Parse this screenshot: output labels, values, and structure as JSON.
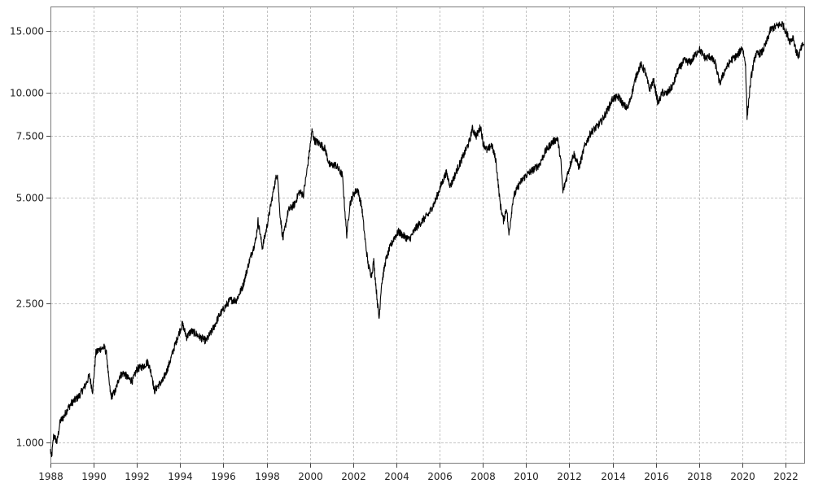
{
  "chart_data": {
    "type": "line",
    "title": "",
    "xlabel": "",
    "ylabel": "",
    "yscale": "log",
    "grid": true,
    "line_color": "#000000",
    "xlim": [
      1988.0,
      2022.9
    ],
    "ylim": [
      870,
      17600
    ],
    "x_tick_labels": [
      "1988",
      "1990",
      "1992",
      "1994",
      "1996",
      "1998",
      "2000",
      "2002",
      "2004",
      "2006",
      "2008",
      "2010",
      "2012",
      "2014",
      "2016",
      "2018",
      "2020",
      "2022"
    ],
    "x_tick_values": [
      1988,
      1990,
      1992,
      1994,
      1996,
      1998,
      2000,
      2002,
      2004,
      2006,
      2008,
      2010,
      2012,
      2014,
      2016,
      2018,
      2020,
      2022
    ],
    "y_tick_labels": [
      "1.000",
      "2.500",
      "5.000",
      "7.500",
      "10.000",
      "15.000"
    ],
    "y_tick_values": [
      1000,
      2500,
      5000,
      7500,
      10000,
      15000
    ],
    "series": [
      {
        "values": [
          [
            1988.0,
            950
          ],
          [
            1988.05,
            900
          ],
          [
            1988.15,
            1050
          ],
          [
            1988.3,
            1000
          ],
          [
            1988.45,
            1150
          ],
          [
            1988.6,
            1180
          ],
          [
            1988.8,
            1250
          ],
          [
            1989.0,
            1300
          ],
          [
            1989.3,
            1350
          ],
          [
            1989.6,
            1450
          ],
          [
            1989.8,
            1550
          ],
          [
            1989.95,
            1400
          ],
          [
            1990.1,
            1800
          ],
          [
            1990.3,
            1850
          ],
          [
            1990.5,
            1870
          ],
          [
            1990.6,
            1780
          ],
          [
            1990.7,
            1500
          ],
          [
            1990.8,
            1350
          ],
          [
            1991.0,
            1400
          ],
          [
            1991.2,
            1550
          ],
          [
            1991.4,
            1580
          ],
          [
            1991.6,
            1520
          ],
          [
            1991.8,
            1500
          ],
          [
            1992.0,
            1620
          ],
          [
            1992.3,
            1650
          ],
          [
            1992.5,
            1700
          ],
          [
            1992.7,
            1550
          ],
          [
            1992.8,
            1400
          ],
          [
            1993.0,
            1460
          ],
          [
            1993.2,
            1500
          ],
          [
            1993.5,
            1680
          ],
          [
            1993.7,
            1850
          ],
          [
            1994.0,
            2100
          ],
          [
            1994.1,
            2180
          ],
          [
            1994.3,
            2000
          ],
          [
            1994.5,
            2080
          ],
          [
            1994.7,
            2050
          ],
          [
            1994.9,
            2000
          ],
          [
            1995.2,
            1950
          ],
          [
            1995.5,
            2100
          ],
          [
            1995.8,
            2300
          ],
          [
            1996.0,
            2400
          ],
          [
            1996.3,
            2550
          ],
          [
            1996.6,
            2550
          ],
          [
            1996.9,
            2800
          ],
          [
            1997.2,
            3300
          ],
          [
            1997.5,
            3800
          ],
          [
            1997.6,
            4300
          ],
          [
            1997.8,
            3600
          ],
          [
            1998.0,
            4100
          ],
          [
            1998.2,
            4800
          ],
          [
            1998.4,
            5600
          ],
          [
            1998.5,
            5900
          ],
          [
            1998.6,
            4600
          ],
          [
            1998.75,
            3800
          ],
          [
            1999.0,
            4600
          ],
          [
            1999.3,
            4800
          ],
          [
            1999.5,
            5200
          ],
          [
            1999.7,
            5100
          ],
          [
            1999.9,
            6200
          ],
          [
            2000.1,
            7800
          ],
          [
            2000.2,
            7300
          ],
          [
            2000.5,
            7100
          ],
          [
            2000.7,
            6900
          ],
          [
            2000.9,
            6200
          ],
          [
            2001.2,
            6200
          ],
          [
            2001.5,
            5800
          ],
          [
            2001.7,
            3900
          ],
          [
            2001.85,
            4800
          ],
          [
            2002.0,
            5100
          ],
          [
            2002.2,
            5300
          ],
          [
            2002.4,
            4700
          ],
          [
            2002.55,
            3800
          ],
          [
            2002.7,
            3200
          ],
          [
            2002.85,
            3000
          ],
          [
            2002.95,
            3300
          ],
          [
            2003.1,
            2600
          ],
          [
            2003.2,
            2250
          ],
          [
            2003.3,
            2800
          ],
          [
            2003.5,
            3300
          ],
          [
            2003.7,
            3600
          ],
          [
            2003.9,
            3850
          ],
          [
            2004.1,
            4000
          ],
          [
            2004.3,
            3900
          ],
          [
            2004.6,
            3800
          ],
          [
            2004.9,
            4100
          ],
          [
            2005.2,
            4300
          ],
          [
            2005.5,
            4500
          ],
          [
            2005.8,
            4900
          ],
          [
            2006.1,
            5500
          ],
          [
            2006.3,
            5900
          ],
          [
            2006.5,
            5400
          ],
          [
            2006.8,
            6000
          ],
          [
            2007.1,
            6600
          ],
          [
            2007.4,
            7300
          ],
          [
            2007.5,
            7900
          ],
          [
            2007.7,
            7500
          ],
          [
            2007.9,
            8000
          ],
          [
            2008.0,
            7200
          ],
          [
            2008.2,
            6800
          ],
          [
            2008.4,
            7100
          ],
          [
            2008.6,
            6400
          ],
          [
            2008.8,
            4800
          ],
          [
            2008.95,
            4300
          ],
          [
            2009.1,
            4700
          ],
          [
            2009.2,
            3900
          ],
          [
            2009.4,
            5000
          ],
          [
            2009.7,
            5500
          ],
          [
            2010.0,
            5800
          ],
          [
            2010.3,
            6000
          ],
          [
            2010.6,
            6200
          ],
          [
            2010.9,
            6800
          ],
          [
            2011.2,
            7200
          ],
          [
            2011.45,
            7400
          ],
          [
            2011.6,
            6400
          ],
          [
            2011.7,
            5200
          ],
          [
            2011.9,
            5800
          ],
          [
            2012.2,
            6700
          ],
          [
            2012.45,
            6100
          ],
          [
            2012.7,
            7000
          ],
          [
            2013.0,
            7700
          ],
          [
            2013.3,
            8000
          ],
          [
            2013.5,
            8300
          ],
          [
            2013.8,
            9000
          ],
          [
            2014.0,
            9600
          ],
          [
            2014.3,
            9700
          ],
          [
            2014.5,
            9200
          ],
          [
            2014.7,
            9000
          ],
          [
            2014.9,
            10000
          ],
          [
            2015.1,
            11200
          ],
          [
            2015.3,
            12000
          ],
          [
            2015.5,
            11500
          ],
          [
            2015.7,
            10200
          ],
          [
            2015.9,
            10800
          ],
          [
            2016.1,
            9300
          ],
          [
            2016.3,
            10000
          ],
          [
            2016.5,
            9900
          ],
          [
            2016.8,
            10500
          ],
          [
            2017.0,
            11500
          ],
          [
            2017.3,
            12300
          ],
          [
            2017.6,
            12200
          ],
          [
            2017.9,
            13000
          ],
          [
            2018.0,
            13300
          ],
          [
            2018.3,
            12500
          ],
          [
            2018.5,
            12700
          ],
          [
            2018.75,
            12100
          ],
          [
            2018.95,
            10600
          ],
          [
            2019.2,
            11600
          ],
          [
            2019.5,
            12400
          ],
          [
            2019.8,
            12800
          ],
          [
            2020.0,
            13500
          ],
          [
            2020.15,
            12000
          ],
          [
            2020.22,
            8500
          ],
          [
            2020.4,
            11000
          ],
          [
            2020.6,
            12800
          ],
          [
            2020.9,
            13000
          ],
          [
            2021.1,
            13800
          ],
          [
            2021.3,
            15100
          ],
          [
            2021.6,
            15500
          ],
          [
            2021.85,
            15700
          ],
          [
            2022.0,
            15000
          ],
          [
            2022.2,
            14000
          ],
          [
            2022.35,
            14400
          ],
          [
            2022.5,
            13000
          ],
          [
            2022.6,
            12700
          ],
          [
            2022.75,
            13500
          ],
          [
            2022.85,
            13800
          ]
        ]
      }
    ]
  }
}
